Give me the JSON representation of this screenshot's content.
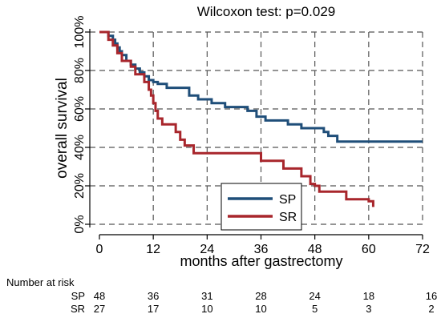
{
  "chart_data": {
    "type": "line",
    "step": true,
    "title": "Wilcoxon test: p=0.029",
    "xlabel": "months after gastrectomy",
    "ylabel": "overall survival",
    "xlim": [
      0,
      72
    ],
    "ylim": [
      0,
      100
    ],
    "xticks": [
      0,
      12,
      24,
      36,
      48,
      60,
      72
    ],
    "yticks": [
      "0%",
      "20%",
      "40%",
      "60%",
      "80%",
      "100%"
    ],
    "ytick_values": [
      0,
      20,
      40,
      60,
      80,
      100
    ],
    "grid": true,
    "legend_position": "bottom-center",
    "series": [
      {
        "name": "SP",
        "color": "#1f4e79",
        "points": [
          [
            0,
            100
          ],
          [
            2,
            98
          ],
          [
            3,
            96
          ],
          [
            3.5,
            94
          ],
          [
            4,
            92
          ],
          [
            4.5,
            90
          ],
          [
            5,
            88
          ],
          [
            6,
            85
          ],
          [
            7,
            83
          ],
          [
            8,
            81
          ],
          [
            9,
            79
          ],
          [
            10,
            77
          ],
          [
            11,
            75
          ],
          [
            12,
            74
          ],
          [
            13,
            73
          ],
          [
            15,
            71
          ],
          [
            20,
            67
          ],
          [
            22,
            65
          ],
          [
            25,
            63
          ],
          [
            28,
            61
          ],
          [
            33,
            59
          ],
          [
            35,
            56
          ],
          [
            37,
            54
          ],
          [
            42,
            52
          ],
          [
            45,
            50
          ],
          [
            50,
            48
          ],
          [
            51,
            46
          ],
          [
            53,
            43
          ],
          [
            72,
            43
          ]
        ]
      },
      {
        "name": "SR",
        "color": "#a8262c",
        "points": [
          [
            0,
            100
          ],
          [
            2,
            96
          ],
          [
            3,
            93
          ],
          [
            4,
            89
          ],
          [
            5,
            85
          ],
          [
            7,
            82
          ],
          [
            8,
            78
          ],
          [
            10,
            74
          ],
          [
            11,
            70
          ],
          [
            11.5,
            67
          ],
          [
            12,
            63
          ],
          [
            12.5,
            59
          ],
          [
            13,
            55
          ],
          [
            14,
            52
          ],
          [
            17,
            48
          ],
          [
            18,
            44
          ],
          [
            19,
            41
          ],
          [
            21,
            37
          ],
          [
            36,
            33
          ],
          [
            41,
            29
          ],
          [
            45,
            25
          ],
          [
            47,
            21
          ],
          [
            48,
            20
          ],
          [
            49,
            17
          ],
          [
            55,
            13
          ],
          [
            60,
            12
          ],
          [
            61,
            9
          ]
        ]
      }
    ],
    "risk_table": {
      "label": "Number at risk",
      "rows": [
        {
          "name": "SP",
          "values": [
            "48",
            "36",
            "31",
            "28",
            "24",
            "18",
            "16"
          ]
        },
        {
          "name": "SR",
          "values": [
            "27",
            "17",
            "10",
            "10",
            "5",
            "3",
            "2"
          ]
        }
      ]
    }
  }
}
